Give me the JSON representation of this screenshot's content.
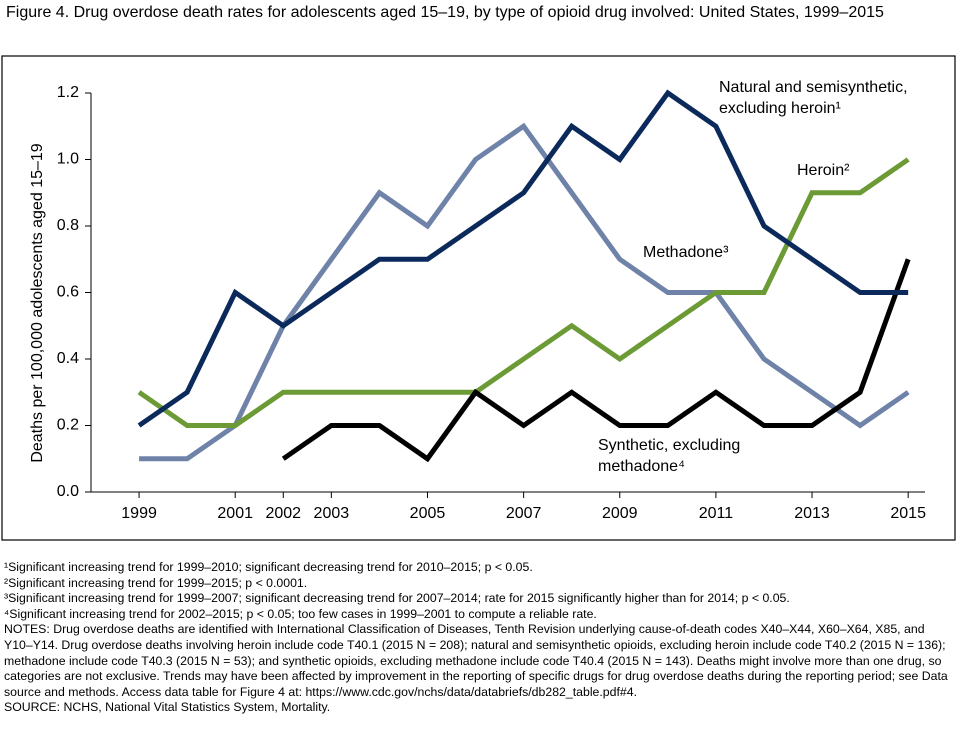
{
  "chart_data": {
    "type": "line",
    "title": "Figure 4. Drug overdose death rates for adolescents aged 15–19, by type of opioid drug involved: United States, 1999–2015",
    "y_label": "Deaths per 100,000 adolescents aged 15–19",
    "x": [
      1999,
      2000,
      2001,
      2002,
      2003,
      2004,
      2005,
      2006,
      2007,
      2008,
      2009,
      2010,
      2011,
      2012,
      2013,
      2014,
      2015
    ],
    "xlim": [
      1998,
      2015.35
    ],
    "xticks": [
      1999,
      2001,
      2002,
      2003,
      2005,
      2007,
      2009,
      2011,
      2013,
      2015
    ],
    "ylim": [
      0,
      1.2
    ],
    "yticks": [
      {
        "value": 0,
        "label": "0.0"
      },
      0.2,
      0.4,
      0.6,
      0.8,
      {
        "value": 1,
        "label": "1.0"
      },
      1.2
    ],
    "grid": false,
    "series": [
      {
        "name": "Natural and semisynthetic, excluding heroin¹",
        "color": "#0b2a5b",
        "values": [
          0.2,
          0.3,
          0.6,
          0.5,
          0.6,
          0.7,
          0.7,
          0.8,
          0.9,
          1.1,
          1.0,
          1.2,
          1.1,
          0.8,
          0.7,
          0.6,
          0.6
        ]
      },
      {
        "name": "Heroin²",
        "color": "#6c9a35",
        "values": [
          0.3,
          0.2,
          0.2,
          0.3,
          0.3,
          0.3,
          0.3,
          0.3,
          0.4,
          0.5,
          0.4,
          0.5,
          0.6,
          0.6,
          0.9,
          0.9,
          1.0
        ]
      },
      {
        "name": "Methadone³",
        "color": "#6f82a8",
        "values": [
          0.1,
          0.1,
          0.2,
          0.5,
          0.7,
          0.9,
          0.8,
          1.0,
          1.1,
          0.9,
          0.7,
          0.6,
          0.6,
          0.4,
          0.3,
          0.2,
          0.3
        ]
      },
      {
        "name": "Synthetic, excluding methadone⁴",
        "color": "#000000",
        "values": [
          null,
          null,
          null,
          0.1,
          0.2,
          0.2,
          0.1,
          0.3,
          0.2,
          0.3,
          0.2,
          0.2,
          0.3,
          0.2,
          0.2,
          0.3,
          0.7
        ]
      }
    ],
    "notes": [
      "¹Significant increasing trend for 1999–2010; significant decreasing trend for 2010–2015; p < 0.05.",
      "²Significant increasing trend for 1999–2015; p < 0.0001.",
      "³Significant increasing trend for 1999–2007; significant decreasing trend for 2007–2014; rate for 2015 significantly higher than for 2014; p < 0.05.",
      "⁴Significant increasing trend for 2002–2015; p < 0.05; too few cases in 1999–2001 to compute a reliable rate.",
      "NOTES: Drug overdose deaths are identified with International Classification of Diseases, Tenth Revision underlying cause-of-death codes X40–X44, X60–X64, X85, and Y10–Y14. Drug overdose deaths involving heroin include code T40.1 (2015 N = 208); natural and semisynthetic opioids, excluding heroin include code T40.2 (2015 N = 136); methadone include code T40.3 (2015 N = 53); and synthetic opioids, excluding methadone include code T40.4 (2015 N = 143). Deaths might involve more than one drug, so categories are not exclusive. Trends may have been affected by improvement in the reporting of specific drugs for drug overdose deaths during the reporting period; see Data source and methods. Access data table for Figure 4 at: https://www.cdc.gov/nchs/data/databriefs/db282_table.pdf#4.",
      "SOURCE: NCHS, National Vital Statistics System, Mortality."
    ]
  }
}
